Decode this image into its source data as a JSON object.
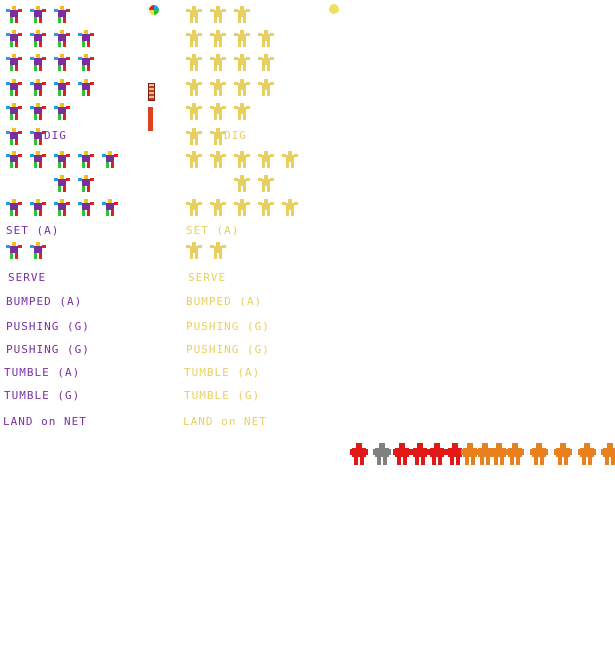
{
  "sheet": {
    "left_palette": {
      "body": "#7a2fa0",
      "accent1": "#e02020",
      "accent2": "#20a0e0",
      "accent3": "#30c030",
      "accent4": "#f0c020"
    },
    "right_palette": {
      "body": "#e8d060"
    },
    "opponent_palette": {
      "red": "#e01818",
      "orange": "#e88020",
      "grey": "#808080"
    }
  },
  "labels": {
    "left": {
      "dig": "DIG",
      "set_a": "SET (A)",
      "serve": "SERVE",
      "bumped_a": "BUMPED (A)",
      "pushing_g": "PUSHING (G)",
      "pushing_g2": "PUSHING (G)",
      "tumble_a": "TUMBLE (A)",
      "tumble_g": "TUMBLE (G)",
      "land_on_net": "LAND on NET"
    },
    "right": {
      "dig": "DIG",
      "set_a": "SET (A)",
      "serve": "SERVE",
      "bumped_a": "BUMPED (A)",
      "pushing_g": "PUSHING (G)",
      "pushing_g2": "PUSHING (G)",
      "tumble_a": "TUMBLE (A)",
      "tumble_g": "TUMBLE (G)",
      "land_on_net": "LAND on NET"
    }
  },
  "icons": {
    "ball": "volleyball-icon",
    "dot": "yellow-dot-icon",
    "net_top": "net-post-top-icon",
    "net_bottom": "net-post-bottom-icon"
  }
}
